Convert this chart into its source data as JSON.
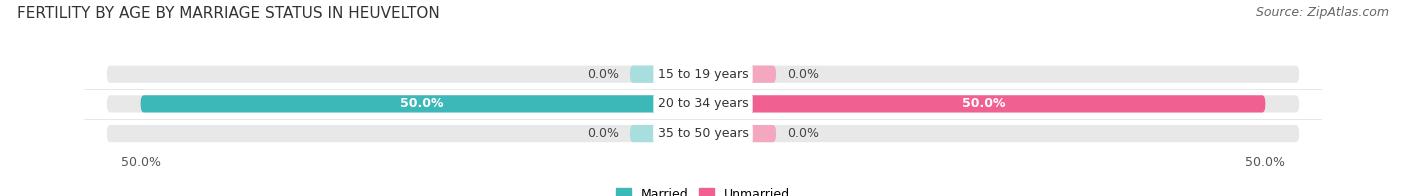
{
  "title": "FERTILITY BY AGE BY MARRIAGE STATUS IN HEUVELTON",
  "source": "Source: ZipAtlas.com",
  "categories": [
    "15 to 19 years",
    "20 to 34 years",
    "35 to 50 years"
  ],
  "married": [
    0.0,
    50.0,
    0.0
  ],
  "unmarried": [
    0.0,
    50.0,
    0.0
  ],
  "married_color": "#3db8b8",
  "unmarried_color": "#f06090",
  "married_light": "#a8dede",
  "unmarried_light": "#f4a8c0",
  "bar_bg_color": "#e8e8e8",
  "bar_height": 0.58,
  "xlim": [
    -55,
    55
  ],
  "xticks": [
    -50,
    50
  ],
  "xticklabels": [
    "50.0%",
    "50.0%"
  ],
  "legend_married": "Married",
  "legend_unmarried": "Unmarried",
  "title_fontsize": 11,
  "source_fontsize": 9,
  "label_fontsize": 9,
  "category_fontsize": 9,
  "tick_fontsize": 9,
  "background_color": "#ffffff",
  "small_bar_width": 6.5,
  "value_label_white_threshold": 10.0
}
